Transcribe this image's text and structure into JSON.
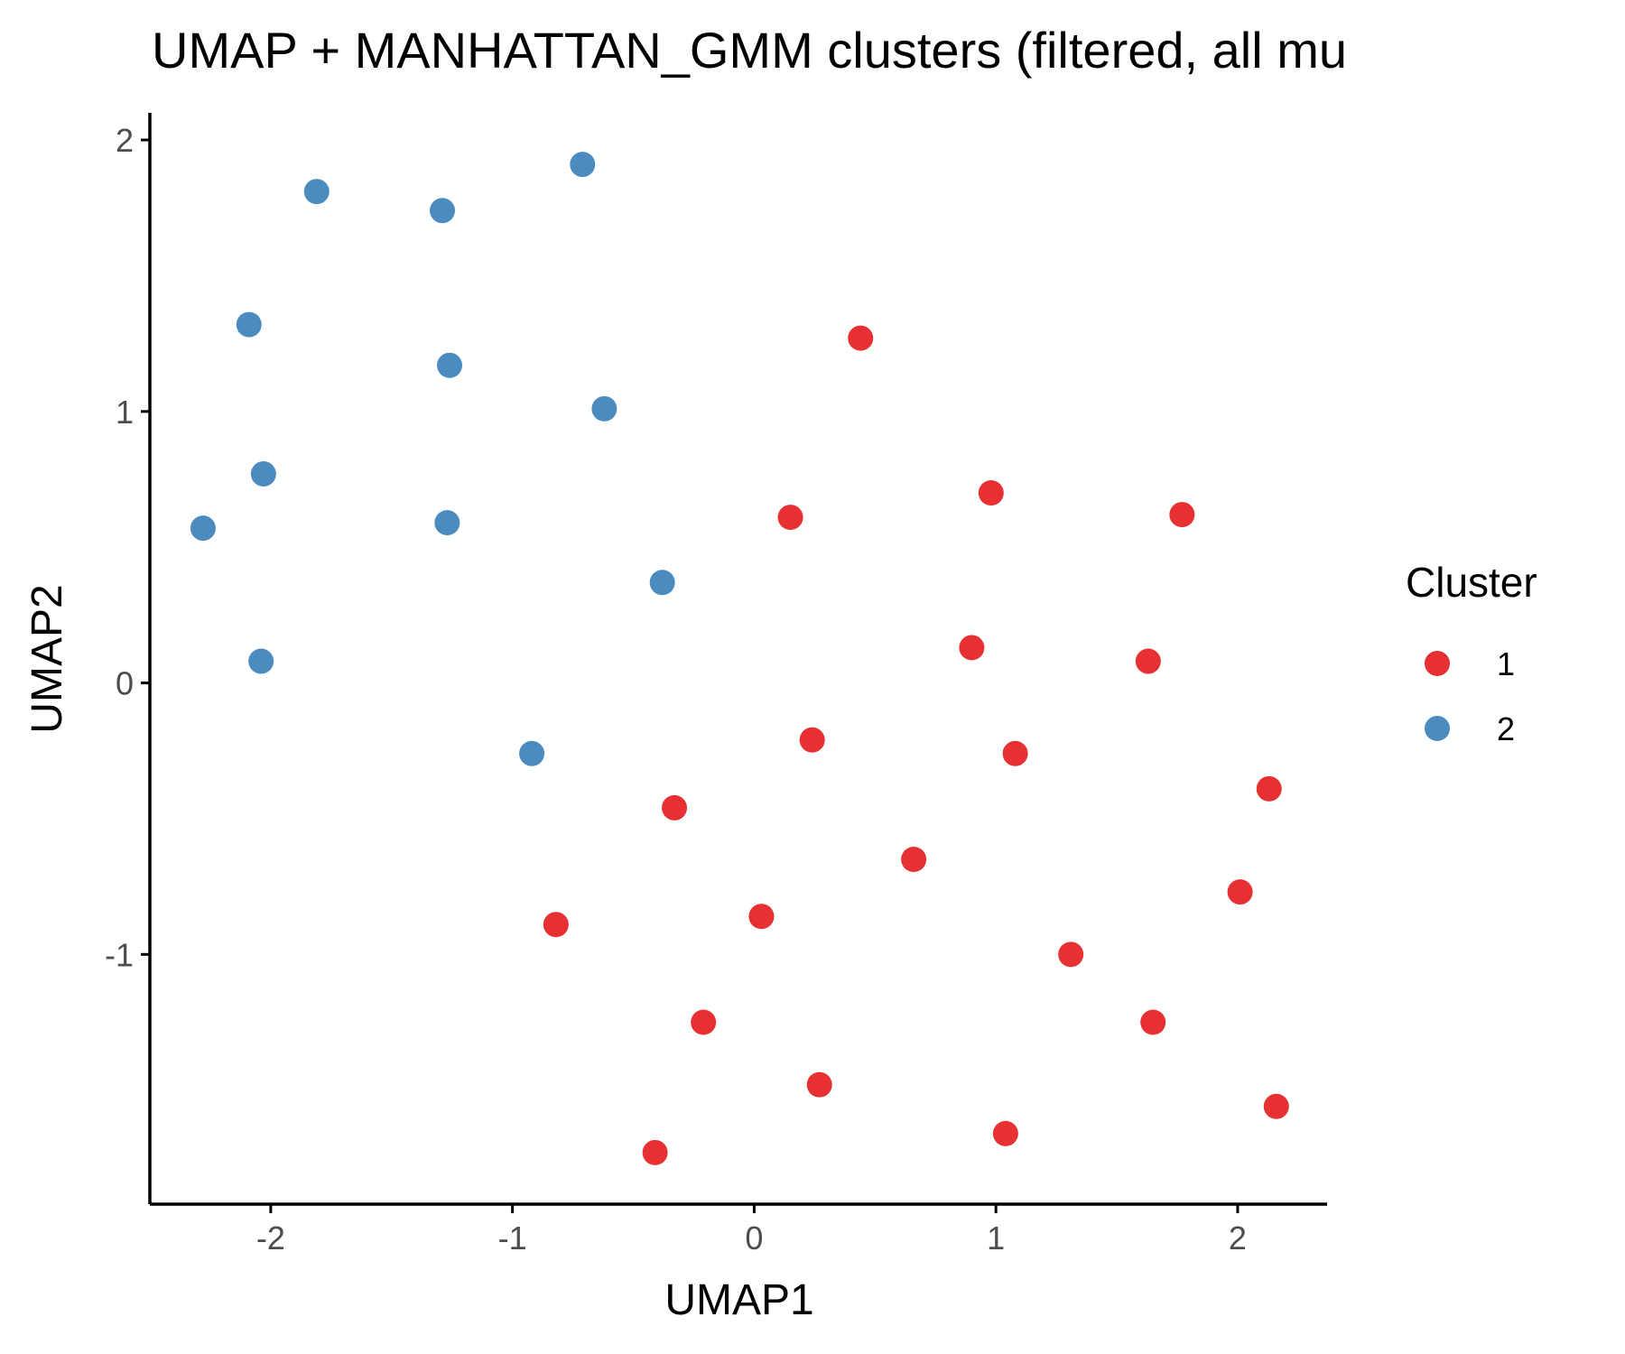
{
  "chart_data": {
    "type": "scatter",
    "title": "UMAP + MANHATTAN_GMM clusters (filtered, all mu",
    "xlabel": "UMAP1",
    "ylabel": "UMAP2",
    "xlim": [
      -2.5,
      2.37
    ],
    "ylim": [
      -1.92,
      2.1
    ],
    "xticks": [
      -2,
      -1,
      0,
      1,
      2
    ],
    "yticks": [
      -1,
      0,
      1,
      2
    ],
    "xtick_labels": [
      "-2",
      "-1",
      "0",
      "1",
      "2"
    ],
    "ytick_labels": [
      "-1",
      "0",
      "1",
      "2"
    ],
    "grid": false,
    "legend": {
      "title": "Cluster",
      "placement": "right"
    },
    "series": [
      {
        "name": "1",
        "color": "#e41a1c",
        "points": [
          {
            "x": 0.44,
            "y": 1.27
          },
          {
            "x": 0.98,
            "y": 0.7
          },
          {
            "x": 1.77,
            "y": 0.62
          },
          {
            "x": 0.15,
            "y": 0.61
          },
          {
            "x": 0.9,
            "y": 0.13
          },
          {
            "x": 1.63,
            "y": 0.08
          },
          {
            "x": 0.24,
            "y": -0.21
          },
          {
            "x": 1.08,
            "y": -0.26
          },
          {
            "x": 2.13,
            "y": -0.39
          },
          {
            "x": -0.33,
            "y": -0.46
          },
          {
            "x": 0.66,
            "y": -0.65
          },
          {
            "x": 2.01,
            "y": -0.77
          },
          {
            "x": 0.03,
            "y": -0.86
          },
          {
            "x": -0.82,
            "y": -0.89
          },
          {
            "x": 1.31,
            "y": -1.0
          },
          {
            "x": -0.21,
            "y": -1.25
          },
          {
            "x": 1.65,
            "y": -1.25
          },
          {
            "x": 0.27,
            "y": -1.48
          },
          {
            "x": 2.16,
            "y": -1.56
          },
          {
            "x": 1.04,
            "y": -1.66
          },
          {
            "x": -0.41,
            "y": -1.73
          }
        ]
      },
      {
        "name": "2",
        "color": "#377eb8",
        "points": [
          {
            "x": -0.71,
            "y": 1.91
          },
          {
            "x": -1.81,
            "y": 1.81
          },
          {
            "x": -1.29,
            "y": 1.74
          },
          {
            "x": -2.09,
            "y": 1.32
          },
          {
            "x": -1.26,
            "y": 1.17
          },
          {
            "x": -0.62,
            "y": 1.01
          },
          {
            "x": -2.03,
            "y": 0.77
          },
          {
            "x": -2.28,
            "y": 0.57
          },
          {
            "x": -1.27,
            "y": 0.59
          },
          {
            "x": -0.38,
            "y": 0.37
          },
          {
            "x": -2.04,
            "y": 0.08
          },
          {
            "x": -0.92,
            "y": -0.26
          }
        ]
      }
    ]
  }
}
